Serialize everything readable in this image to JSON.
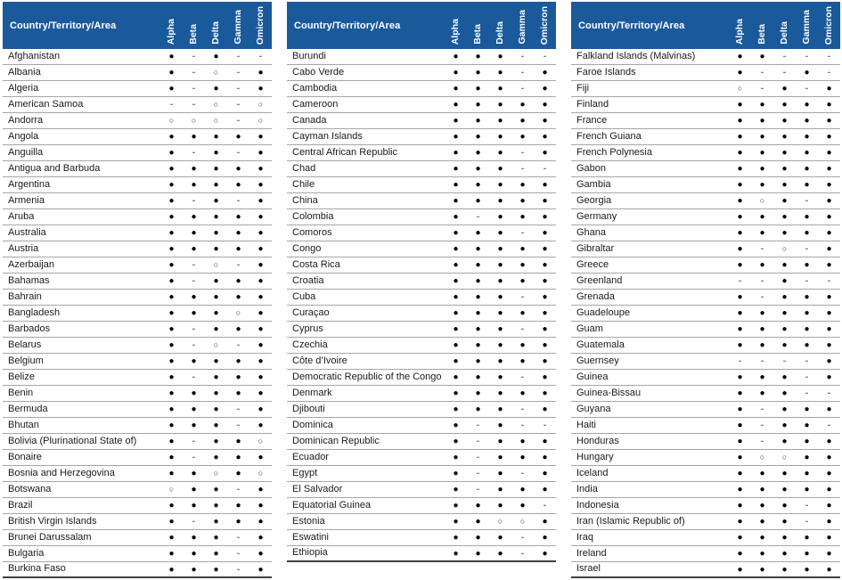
{
  "row_header": "Country/Territory/Area",
  "columns": [
    "Alpha",
    "Beta",
    "Delta",
    "Gamma",
    "Omicron"
  ],
  "symbols": {
    "filled": "●",
    "open": "○",
    "dash": "-"
  },
  "colors": {
    "header_bg": "#1b5a9a",
    "header_text": "#ffffff",
    "row_divider": "#a6a6a6",
    "table_bottom_border": "#3f3f3f",
    "dot": "#000000",
    "dash": "#7f7f7f",
    "body_text": "#1a1a1a"
  },
  "tables": [
    {
      "rows": [
        {
          "name": "Afghanistan",
          "values": [
            "●",
            "-",
            "●",
            "-",
            "-"
          ]
        },
        {
          "name": "Albania",
          "values": [
            "●",
            "-",
            "○",
            "-",
            "●"
          ]
        },
        {
          "name": "Algeria",
          "values": [
            "●",
            "-",
            "●",
            "-",
            "●"
          ]
        },
        {
          "name": "American Samoa",
          "values": [
            "-",
            "-",
            "○",
            "-",
            "○"
          ]
        },
        {
          "name": "Andorra",
          "values": [
            "○",
            "○",
            "○",
            "-",
            "○"
          ]
        },
        {
          "name": "Angola",
          "values": [
            "●",
            "●",
            "●",
            "●",
            "●"
          ]
        },
        {
          "name": "Anguilla",
          "values": [
            "●",
            "-",
            "●",
            "-",
            "●"
          ]
        },
        {
          "name": "Antigua and Barbuda",
          "values": [
            "●",
            "●",
            "●",
            "●",
            "●"
          ]
        },
        {
          "name": "Argentina",
          "values": [
            "●",
            "●",
            "●",
            "●",
            "●"
          ]
        },
        {
          "name": "Armenia",
          "values": [
            "●",
            "-",
            "●",
            "-",
            "●"
          ]
        },
        {
          "name": "Aruba",
          "values": [
            "●",
            "●",
            "●",
            "●",
            "●"
          ]
        },
        {
          "name": "Australia",
          "values": [
            "●",
            "●",
            "●",
            "●",
            "●"
          ]
        },
        {
          "name": "Austria",
          "values": [
            "●",
            "●",
            "●",
            "●",
            "●"
          ]
        },
        {
          "name": "Azerbaijan",
          "values": [
            "●",
            "-",
            "○",
            "-",
            "●"
          ]
        },
        {
          "name": "Bahamas",
          "values": [
            "●",
            "-",
            "●",
            "●",
            "●"
          ]
        },
        {
          "name": "Bahrain",
          "values": [
            "●",
            "●",
            "●",
            "●",
            "●"
          ]
        },
        {
          "name": "Bangladesh",
          "values": [
            "●",
            "●",
            "●",
            "○",
            "●"
          ]
        },
        {
          "name": "Barbados",
          "values": [
            "●",
            "-",
            "●",
            "●",
            "●"
          ]
        },
        {
          "name": "Belarus",
          "values": [
            "●",
            "-",
            "○",
            "-",
            "●"
          ]
        },
        {
          "name": "Belgium",
          "values": [
            "●",
            "●",
            "●",
            "●",
            "●"
          ]
        },
        {
          "name": "Belize",
          "values": [
            "●",
            "-",
            "●",
            "●",
            "●"
          ]
        },
        {
          "name": "Benin",
          "values": [
            "●",
            "●",
            "●",
            "●",
            "●"
          ]
        },
        {
          "name": "Bermuda",
          "values": [
            "●",
            "●",
            "●",
            "-",
            "●"
          ]
        },
        {
          "name": "Bhutan",
          "values": [
            "●",
            "●",
            "●",
            "-",
            "●"
          ]
        },
        {
          "name": "Bolivia (Plurinational State of)",
          "values": [
            "●",
            "-",
            "●",
            "●",
            "○"
          ]
        },
        {
          "name": "Bonaire",
          "values": [
            "●",
            "-",
            "●",
            "●",
            "●"
          ]
        },
        {
          "name": "Bosnia and Herzegovina",
          "values": [
            "●",
            "●",
            "○",
            "●",
            "○"
          ]
        },
        {
          "name": "Botswana",
          "values": [
            "○",
            "●",
            "●",
            "-",
            "●"
          ]
        },
        {
          "name": "Brazil",
          "values": [
            "●",
            "●",
            "●",
            "●",
            "●"
          ]
        },
        {
          "name": "British Virgin Islands",
          "values": [
            "●",
            "-",
            "●",
            "●",
            "●"
          ]
        },
        {
          "name": "Brunei Darussalam",
          "values": [
            "●",
            "●",
            "●",
            "-",
            "●"
          ]
        },
        {
          "name": "Bulgaria",
          "values": [
            "●",
            "●",
            "●",
            "-",
            "●"
          ]
        },
        {
          "name": "Burkina Faso",
          "values": [
            "●",
            "●",
            "●",
            "-",
            "●"
          ]
        }
      ]
    },
    {
      "rows": [
        {
          "name": "Burundi",
          "values": [
            "●",
            "●",
            "●",
            "-",
            "-"
          ]
        },
        {
          "name": "Cabo Verde",
          "values": [
            "●",
            "●",
            "●",
            "-",
            "●"
          ]
        },
        {
          "name": "Cambodia",
          "values": [
            "●",
            "●",
            "●",
            "-",
            "●"
          ]
        },
        {
          "name": "Cameroon",
          "values": [
            "●",
            "●",
            "●",
            "●",
            "●"
          ]
        },
        {
          "name": "Canada",
          "values": [
            "●",
            "●",
            "●",
            "●",
            "●"
          ]
        },
        {
          "name": "Cayman Islands",
          "values": [
            "●",
            "●",
            "●",
            "●",
            "●"
          ]
        },
        {
          "name": "Central African Republic",
          "values": [
            "●",
            "●",
            "●",
            "-",
            "●"
          ]
        },
        {
          "name": "Chad",
          "values": [
            "●",
            "●",
            "●",
            "-",
            "-"
          ]
        },
        {
          "name": "Chile",
          "values": [
            "●",
            "●",
            "●",
            "●",
            "●"
          ]
        },
        {
          "name": "China",
          "values": [
            "●",
            "●",
            "●",
            "●",
            "●"
          ]
        },
        {
          "name": "Colombia",
          "values": [
            "●",
            "-",
            "●",
            "●",
            "●"
          ]
        },
        {
          "name": "Comoros",
          "values": [
            "●",
            "●",
            "●",
            "-",
            "●"
          ]
        },
        {
          "name": "Congo",
          "values": [
            "●",
            "●",
            "●",
            "●",
            "●"
          ]
        },
        {
          "name": "Costa Rica",
          "values": [
            "●",
            "●",
            "●",
            "●",
            "●"
          ]
        },
        {
          "name": "Croatia",
          "values": [
            "●",
            "●",
            "●",
            "●",
            "●"
          ]
        },
        {
          "name": "Cuba",
          "values": [
            "●",
            "●",
            "●",
            "-",
            "●"
          ]
        },
        {
          "name": "Curaçao",
          "values": [
            "●",
            "●",
            "●",
            "●",
            "●"
          ]
        },
        {
          "name": "Cyprus",
          "values": [
            "●",
            "●",
            "●",
            "-",
            "●"
          ]
        },
        {
          "name": "Czechia",
          "values": [
            "●",
            "●",
            "●",
            "●",
            "●"
          ]
        },
        {
          "name": "Côte d’Ivoire",
          "values": [
            "●",
            "●",
            "●",
            "●",
            "●"
          ]
        },
        {
          "name": "Democratic Republic of the Congo",
          "values": [
            "●",
            "●",
            "●",
            "-",
            "●"
          ]
        },
        {
          "name": "Denmark",
          "values": [
            "●",
            "●",
            "●",
            "●",
            "●"
          ]
        },
        {
          "name": "Djibouti",
          "values": [
            "●",
            "●",
            "●",
            "-",
            "●"
          ]
        },
        {
          "name": "Dominica",
          "values": [
            "●",
            "-",
            "●",
            "-",
            "-"
          ]
        },
        {
          "name": "Dominican Republic",
          "values": [
            "●",
            "-",
            "●",
            "●",
            "●"
          ]
        },
        {
          "name": "Ecuador",
          "values": [
            "●",
            "-",
            "●",
            "●",
            "●"
          ]
        },
        {
          "name": "Egypt",
          "values": [
            "●",
            "-",
            "●",
            "-",
            "●"
          ]
        },
        {
          "name": "El Salvador",
          "values": [
            "●",
            "-",
            "●",
            "●",
            "●"
          ]
        },
        {
          "name": "Equatorial Guinea",
          "values": [
            "●",
            "●",
            "●",
            "●",
            "-"
          ]
        },
        {
          "name": "Estonia",
          "values": [
            "●",
            "●",
            "○",
            "○",
            "●"
          ]
        },
        {
          "name": "Eswatini",
          "values": [
            "●",
            "●",
            "●",
            "-",
            "●"
          ]
        },
        {
          "name": "Ethiopia",
          "values": [
            "●",
            "●",
            "●",
            "-",
            "●"
          ]
        }
      ]
    },
    {
      "rows": [
        {
          "name": "Falkland Islands (Malvinas)",
          "values": [
            "●",
            "●",
            "-",
            "-",
            "-"
          ]
        },
        {
          "name": "Faroe Islands",
          "values": [
            "●",
            "-",
            "-",
            "●",
            "-"
          ]
        },
        {
          "name": "Fiji",
          "values": [
            "○",
            "-",
            "●",
            "-",
            "●"
          ]
        },
        {
          "name": "Finland",
          "values": [
            "●",
            "●",
            "●",
            "●",
            "●"
          ]
        },
        {
          "name": "France",
          "values": [
            "●",
            "●",
            "●",
            "●",
            "●"
          ]
        },
        {
          "name": "French Guiana",
          "values": [
            "●",
            "●",
            "●",
            "●",
            "●"
          ]
        },
        {
          "name": "French Polynesia",
          "values": [
            "●",
            "●",
            "●",
            "●",
            "●"
          ]
        },
        {
          "name": "Gabon",
          "values": [
            "●",
            "●",
            "●",
            "●",
            "●"
          ]
        },
        {
          "name": "Gambia",
          "values": [
            "●",
            "●",
            "●",
            "●",
            "●"
          ]
        },
        {
          "name": "Georgia",
          "values": [
            "●",
            "○",
            "●",
            "-",
            "●"
          ]
        },
        {
          "name": "Germany",
          "values": [
            "●",
            "●",
            "●",
            "●",
            "●"
          ]
        },
        {
          "name": "Ghana",
          "values": [
            "●",
            "●",
            "●",
            "●",
            "●"
          ]
        },
        {
          "name": "Gibraltar",
          "values": [
            "●",
            "-",
            "○",
            "-",
            "●"
          ]
        },
        {
          "name": "Greece",
          "values": [
            "●",
            "●",
            "●",
            "●",
            "●"
          ]
        },
        {
          "name": "Greenland",
          "values": [
            "-",
            "-",
            "●",
            "-",
            "-"
          ]
        },
        {
          "name": "Grenada",
          "values": [
            "●",
            "-",
            "●",
            "●",
            "●"
          ]
        },
        {
          "name": "Guadeloupe",
          "values": [
            "●",
            "●",
            "●",
            "●",
            "●"
          ]
        },
        {
          "name": "Guam",
          "values": [
            "●",
            "●",
            "●",
            "●",
            "●"
          ]
        },
        {
          "name": "Guatemala",
          "values": [
            "●",
            "●",
            "●",
            "●",
            "●"
          ]
        },
        {
          "name": "Guernsey",
          "values": [
            "-",
            "-",
            "-",
            "-",
            "●"
          ]
        },
        {
          "name": "Guinea",
          "values": [
            "●",
            "●",
            "●",
            "-",
            "●"
          ]
        },
        {
          "name": "Guinea-Bissau",
          "values": [
            "●",
            "●",
            "●",
            "-",
            "-"
          ]
        },
        {
          "name": "Guyana",
          "values": [
            "●",
            "-",
            "●",
            "●",
            "●"
          ]
        },
        {
          "name": "Haiti",
          "values": [
            "●",
            "-",
            "●",
            "●",
            "-"
          ]
        },
        {
          "name": "Honduras",
          "values": [
            "●",
            "-",
            "●",
            "●",
            "●"
          ]
        },
        {
          "name": "Hungary",
          "values": [
            "●",
            "○",
            "○",
            "●",
            "●"
          ]
        },
        {
          "name": "Iceland",
          "values": [
            "●",
            "●",
            "●",
            "●",
            "●"
          ]
        },
        {
          "name": "India",
          "values": [
            "●",
            "●",
            "●",
            "●",
            "●"
          ]
        },
        {
          "name": "Indonesia",
          "values": [
            "●",
            "●",
            "●",
            "-",
            "●"
          ]
        },
        {
          "name": "Iran (Islamic Republic of)",
          "values": [
            "●",
            "●",
            "●",
            "-",
            "●"
          ]
        },
        {
          "name": "Iraq",
          "values": [
            "●",
            "●",
            "●",
            "●",
            "●"
          ]
        },
        {
          "name": "Ireland",
          "values": [
            "●",
            "●",
            "●",
            "●",
            "●"
          ]
        },
        {
          "name": "Israel",
          "values": [
            "●",
            "●",
            "●",
            "●",
            "●"
          ]
        }
      ]
    }
  ]
}
